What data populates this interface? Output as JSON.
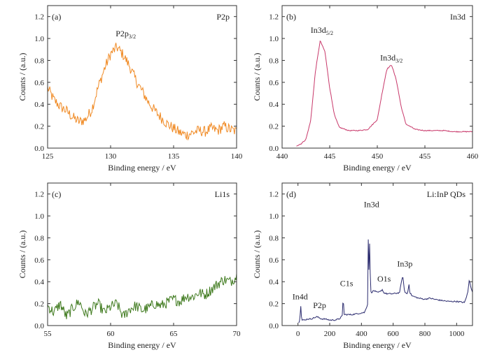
{
  "chart_data": [
    {
      "type": "line",
      "panel_label": "(a)",
      "title": "P2p",
      "xlabel": "Binding energy / eV",
      "ylabel": "Counts / (a.u.)",
      "xlim": [
        125,
        140
      ],
      "ylim": [
        0,
        1.3
      ],
      "xticks": [
        "125",
        "130",
        "135",
        "140"
      ],
      "yticks": [
        "0.0",
        "0.2",
        "0.4",
        "0.6",
        "0.8",
        "1.0",
        "1.2"
      ],
      "color": "#F08A24",
      "annotations": [
        {
          "text": "P2p",
          "sub": "3/2",
          "x": 130.4,
          "y": 1.02
        }
      ],
      "series": [
        {
          "x": [
            125,
            125.5,
            126,
            126.5,
            127,
            127.5,
            128,
            128.5,
            129,
            129.5,
            130,
            130.5,
            131,
            131.5,
            132,
            132.5,
            133,
            133.5,
            134,
            134.5,
            135,
            135.5,
            136,
            136.5,
            137,
            137.5,
            138,
            138.5,
            139,
            139.5,
            140
          ],
          "y": [
            0.55,
            0.44,
            0.38,
            0.34,
            0.28,
            0.24,
            0.26,
            0.35,
            0.55,
            0.72,
            0.86,
            0.92,
            0.85,
            0.75,
            0.62,
            0.52,
            0.42,
            0.34,
            0.28,
            0.22,
            0.18,
            0.14,
            0.12,
            0.14,
            0.16,
            0.15,
            0.18,
            0.16,
            0.2,
            0.17,
            0.15
          ]
        }
      ]
    },
    {
      "type": "line",
      "panel_label": "(b)",
      "title": "In3d",
      "xlabel": "Binding energy / eV",
      "ylabel": "Counts / (a.u.)",
      "xlim": [
        440,
        460
      ],
      "ylim": [
        0,
        1.3
      ],
      "xticks": [
        "440",
        "445",
        "450",
        "455",
        "460"
      ],
      "yticks": [
        "0.0",
        "0.2",
        "0.4",
        "0.6",
        "0.8",
        "1.0",
        "1.2"
      ],
      "color": "#C8386A",
      "annotations": [
        {
          "text": "In3d",
          "sub": "5/2",
          "x": 443.0,
          "y": 1.05
        },
        {
          "text": "In3d",
          "sub": "3/2",
          "x": 450.3,
          "y": 0.8
        }
      ],
      "series": [
        {
          "x": [
            441.5,
            442,
            442.5,
            443,
            443.5,
            444,
            444.5,
            445,
            445.5,
            446,
            447,
            448,
            449,
            450,
            450.5,
            451,
            451.5,
            452,
            452.5,
            453,
            454,
            455,
            456,
            457,
            458,
            459,
            460
          ],
          "y": [
            0.02,
            0.04,
            0.08,
            0.25,
            0.7,
            0.98,
            0.88,
            0.55,
            0.3,
            0.19,
            0.16,
            0.16,
            0.17,
            0.26,
            0.5,
            0.72,
            0.76,
            0.62,
            0.38,
            0.22,
            0.17,
            0.16,
            0.16,
            0.16,
            0.15,
            0.15,
            0.15
          ]
        }
      ]
    },
    {
      "type": "line",
      "panel_label": "(c)",
      "title": "Li1s",
      "xlabel": "Binding energy / eV",
      "ylabel": "Counts / (a.u.)",
      "xlim": [
        55,
        70
      ],
      "ylim": [
        0,
        1.3
      ],
      "xticks": [
        "55",
        "60",
        "65",
        "70"
      ],
      "yticks": [
        "0.0",
        "0.2",
        "0.4",
        "0.6",
        "0.8",
        "1.0",
        "1.2"
      ],
      "color": "#3F7A1E",
      "annotations": [],
      "series": [
        {
          "x": [
            55,
            55.5,
            56,
            56.5,
            57,
            57.5,
            58,
            58.5,
            59,
            59.5,
            60,
            60.5,
            61,
            61.5,
            62,
            62.5,
            63,
            63.5,
            64,
            64.5,
            65,
            65.5,
            66,
            66.5,
            67,
            67.5,
            68,
            68.5,
            69,
            69.5,
            70
          ],
          "y": [
            0.18,
            0.12,
            0.2,
            0.08,
            0.16,
            0.22,
            0.1,
            0.15,
            0.2,
            0.12,
            0.17,
            0.2,
            0.08,
            0.15,
            0.18,
            0.14,
            0.16,
            0.2,
            0.18,
            0.21,
            0.24,
            0.22,
            0.27,
            0.26,
            0.3,
            0.28,
            0.33,
            0.38,
            0.42,
            0.4,
            0.45
          ]
        }
      ]
    },
    {
      "type": "line",
      "panel_label": "(d)",
      "title": "Li:InP QDs",
      "xlabel": "Binding energy / eV",
      "ylabel": "Counts / (a.u.)",
      "xlim": [
        -100,
        1100
      ],
      "ylim": [
        0,
        1.3
      ],
      "xticks": [
        "0",
        "200",
        "400",
        "600",
        "800",
        "1000"
      ],
      "yticks": [
        "0.0",
        "0.2",
        "0.4",
        "0.6",
        "0.8",
        "1.0",
        "1.2"
      ],
      "color": "#2B2B6E",
      "annotations": [
        {
          "text": "In4d",
          "x": -35,
          "y": 0.24
        },
        {
          "text": "P2p",
          "x": 95,
          "y": 0.16
        },
        {
          "text": "C1s",
          "x": 265,
          "y": 0.36
        },
        {
          "text": "In3d",
          "x": 415,
          "y": 1.08
        },
        {
          "text": "O1s",
          "x": 500,
          "y": 0.4
        },
        {
          "text": "In3p",
          "x": 625,
          "y": 0.54
        }
      ],
      "series": [
        {
          "x": [
            5,
            10,
            15,
            18,
            20,
            25,
            40,
            60,
            80,
            100,
            120,
            135,
            150,
            170,
            200,
            230,
            260,
            280,
            285,
            290,
            300,
            340,
            380,
            420,
            440,
            444,
            448,
            452,
            456,
            460,
            480,
            500,
            520,
            532,
            540,
            560,
            600,
            640,
            660,
            668,
            675,
            690,
            700,
            705,
            720,
            760,
            800,
            830,
            860,
            900,
            950,
            1000,
            1050,
            1070,
            1080,
            1090,
            1095,
            1100
          ],
          "y": [
            0.03,
            0.05,
            0.12,
            0.19,
            0.1,
            0.05,
            0.05,
            0.06,
            0.06,
            0.07,
            0.08,
            0.07,
            0.06,
            0.06,
            0.05,
            0.05,
            0.06,
            0.09,
            0.28,
            0.1,
            0.1,
            0.1,
            0.11,
            0.12,
            0.2,
            0.98,
            0.4,
            0.8,
            0.45,
            0.3,
            0.32,
            0.3,
            0.31,
            0.33,
            0.3,
            0.29,
            0.29,
            0.3,
            0.46,
            0.35,
            0.3,
            0.29,
            0.38,
            0.3,
            0.27,
            0.25,
            0.24,
            0.25,
            0.24,
            0.23,
            0.22,
            0.22,
            0.21,
            0.3,
            0.42,
            0.35,
            0.33,
            0.3
          ]
        }
      ]
    }
  ]
}
